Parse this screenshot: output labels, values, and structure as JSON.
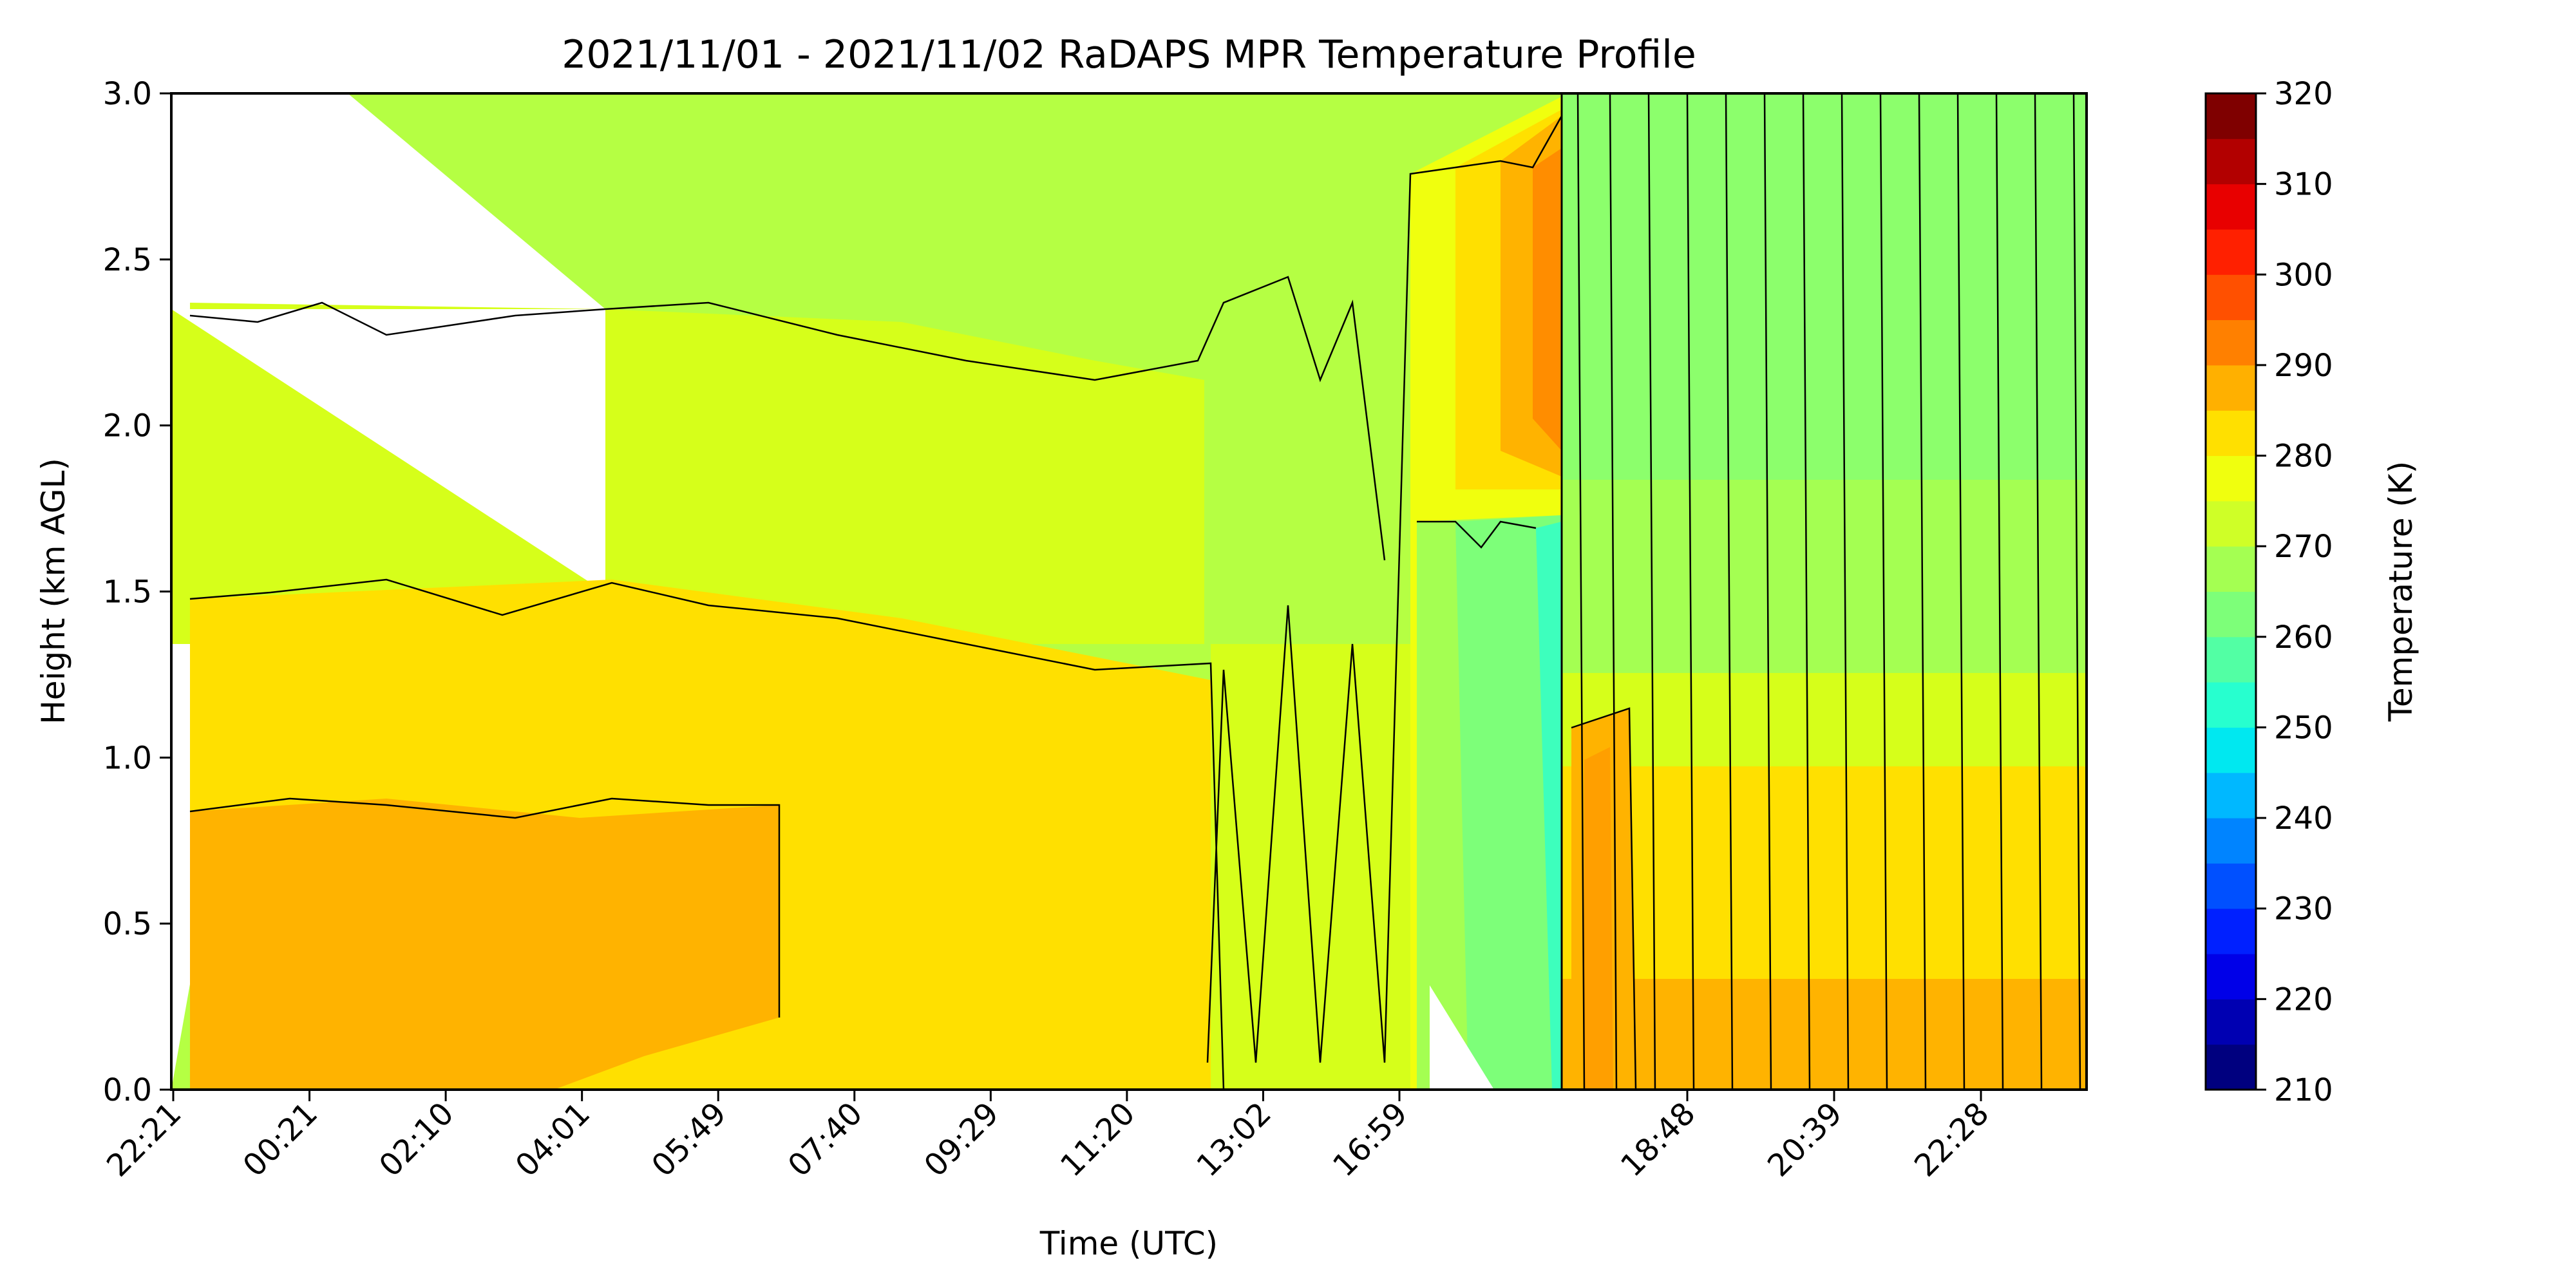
{
  "chart_data": {
    "type": "heatmap",
    "title": "2021/11/01 - 2021/11/02 RaDAPS MPR Temperature Profile",
    "xlabel": "Time (UTC)",
    "ylabel": "Height (km AGL)",
    "x_ticks": [
      "22:21",
      "00:21",
      "02:10",
      "04:01",
      "05:49",
      "07:40",
      "09:29",
      "11:20",
      "13:02",
      "16:59",
      "18:48",
      "20:39",
      "22:28"
    ],
    "y_ticks": [
      "0.0",
      "0.5",
      "1.0",
      "1.5",
      "2.0",
      "2.5",
      "3.0"
    ],
    "ylim": [
      0,
      3
    ],
    "colorbar": {
      "label": "Temperature (K)",
      "ticks": [
        "210",
        "220",
        "230",
        "240",
        "250",
        "260",
        "270",
        "280",
        "290",
        "300",
        "310",
        "320"
      ],
      "range": [
        210,
        320
      ],
      "step": 5,
      "colors": [
        "#00007f",
        "#0000b2",
        "#0000e8",
        "#0020ff",
        "#0050ff",
        "#0084ff",
        "#00b8ff",
        "#00e8f0",
        "#27ffcf",
        "#52ffa4",
        "#7dff79",
        "#a4ff52",
        "#cfff27",
        "#f0ff0e",
        "#ffe000",
        "#ffb000",
        "#ff8000",
        "#ff5000",
        "#ff2000",
        "#e80000",
        "#b20000",
        "#7f0000"
      ]
    },
    "regions": [
      {
        "period": "22:21 - 05:49",
        "height_km": [
          0.0,
          0.85
        ],
        "temperature_K": [
          285,
          290
        ]
      },
      {
        "period": "22:21 - 11:20",
        "height_km": [
          0.85,
          1.45
        ],
        "temperature_K": [
          280,
          285
        ]
      },
      {
        "period": "22:21 - 11:20",
        "height_km": [
          1.45,
          2.3
        ],
        "temperature_K": [
          275,
          280
        ]
      },
      {
        "period": "22:21 - 16:59",
        "height_km": [
          2.3,
          3.0
        ],
        "temperature_K": [
          270,
          275
        ]
      },
      {
        "period": "16:59 - 18:48",
        "height_km": [
          1.75,
          3.0
        ],
        "temperature_K": [
          280,
          295
        ]
      },
      {
        "period": "16:59 - 18:48",
        "height_km": [
          0.0,
          1.7
        ],
        "temperature_K": [
          255,
          275
        ]
      },
      {
        "period": "18:48 - 22:28",
        "height_km": [
          0.0,
          1.2
        ],
        "temperature_K": [
          280,
          290
        ]
      },
      {
        "period": "18:48 - 22:28",
        "height_km": [
          1.2,
          3.0
        ],
        "temperature_K": [
          265,
          275
        ]
      }
    ]
  }
}
